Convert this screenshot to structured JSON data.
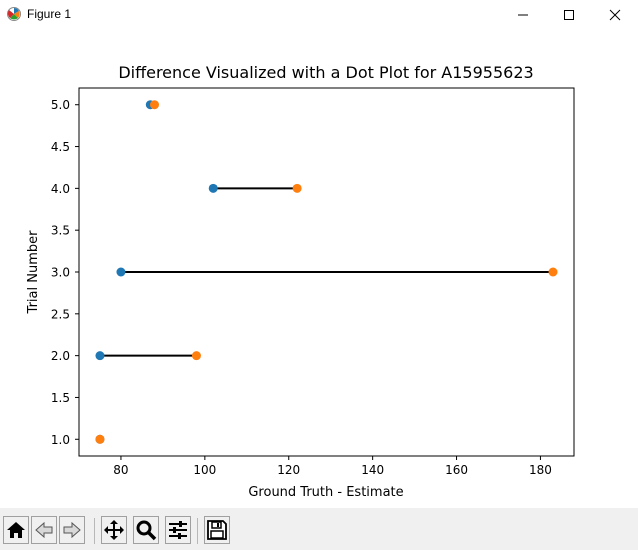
{
  "window": {
    "title": "Figure 1",
    "controls": [
      {
        "name": "minimize-button",
        "icon": "minimize-icon"
      },
      {
        "name": "maximize-button",
        "icon": "maximize-icon"
      },
      {
        "name": "close-button",
        "icon": "close-icon"
      }
    ]
  },
  "toolbar": {
    "buttons": [
      {
        "name": "home-button",
        "icon": "home-icon"
      },
      {
        "name": "back-button",
        "icon": "back-arrow-icon"
      },
      {
        "name": "forward-button",
        "icon": "forward-arrow-icon"
      },
      {
        "name": "pan-button",
        "icon": "move-icon"
      },
      {
        "name": "zoom-button",
        "icon": "magnifier-icon"
      },
      {
        "name": "configure-subplots-button",
        "icon": "sliders-icon"
      },
      {
        "name": "save-button",
        "icon": "save-icon"
      }
    ]
  },
  "chart_data": {
    "type": "scatter",
    "title": "Difference Visualized with a Dot Plot for A15955623",
    "xlabel": "Ground Truth - Estimate",
    "ylabel": "Trial Number",
    "xlim": [
      70,
      188
    ],
    "ylim": [
      0.8,
      5.2
    ],
    "xticks": [
      80,
      100,
      120,
      140,
      160,
      180
    ],
    "yticks": [
      1.0,
      1.5,
      2.0,
      2.5,
      3.0,
      3.5,
      4.0,
      4.5,
      5.0
    ],
    "ytick_labels": [
      "1.0",
      "1.5",
      "2.0",
      "2.5",
      "3.0",
      "3.5",
      "4.0",
      "4.5",
      "5.0"
    ],
    "grid": false,
    "series": [
      {
        "color": "#1f77b4",
        "points": [
          [
            75,
            1
          ],
          [
            75,
            2
          ],
          [
            80,
            3
          ],
          [
            102,
            4
          ],
          [
            87,
            5
          ]
        ]
      },
      {
        "color": "#ff7f0e",
        "points": [
          [
            75,
            1
          ],
          [
            98,
            2
          ],
          [
            183,
            3
          ],
          [
            122,
            4
          ],
          [
            88,
            5
          ]
        ]
      }
    ],
    "connectors": {
      "color": "#000000"
    }
  }
}
